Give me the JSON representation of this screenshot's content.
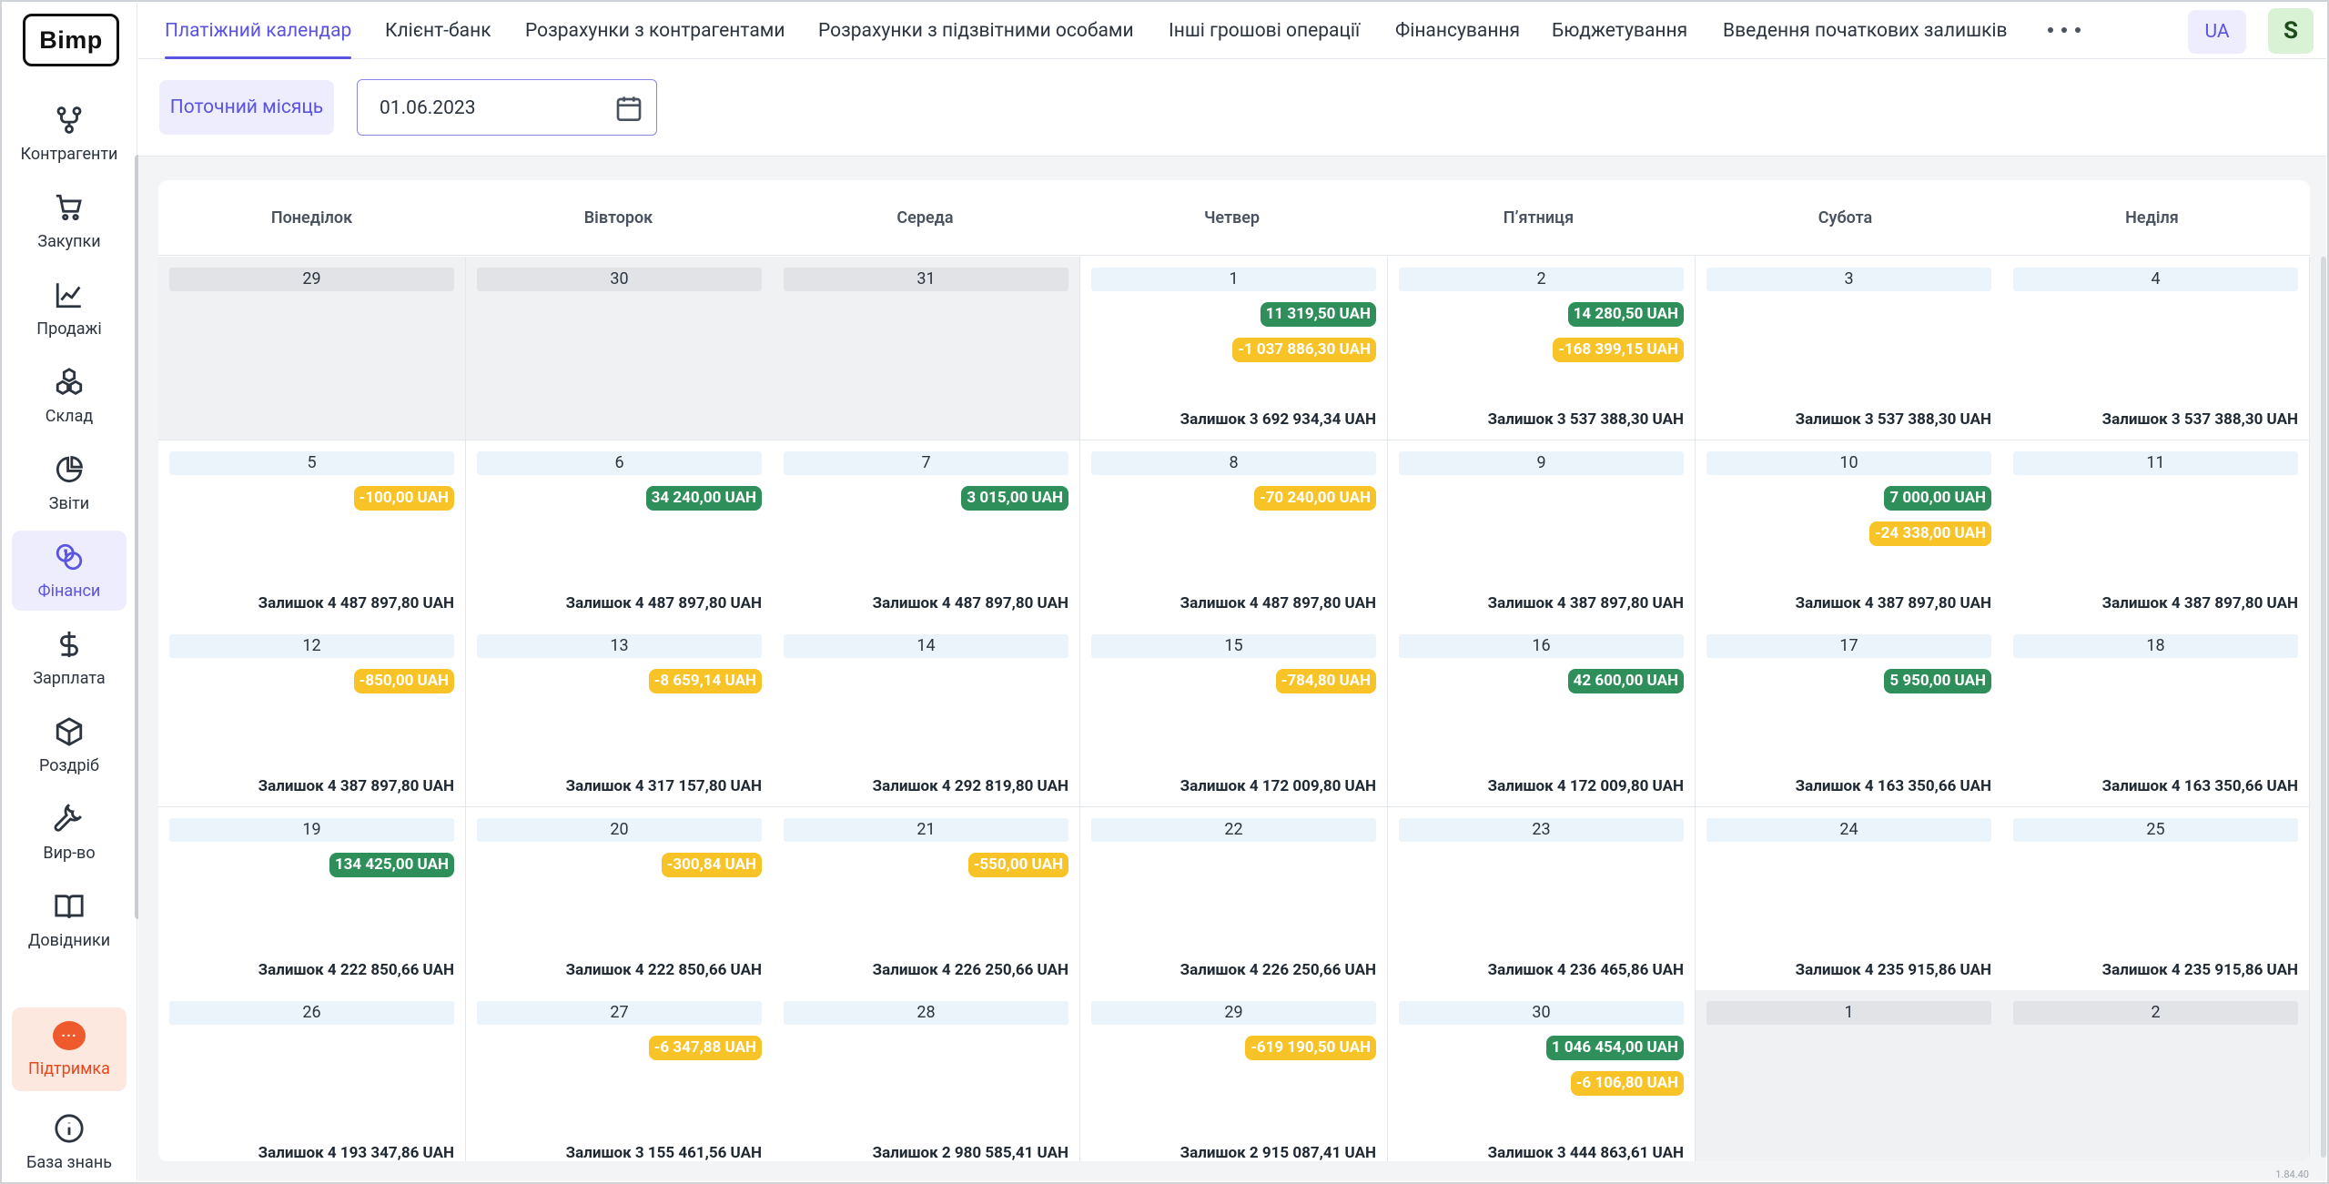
{
  "app": {
    "logo": "Bimp",
    "version": "1.84.40"
  },
  "sidebar": {
    "items": [
      {
        "label": "Контрагенти",
        "icon": "counterparties-icon"
      },
      {
        "label": "Закупки",
        "icon": "cart-icon"
      },
      {
        "label": "Продажі",
        "icon": "chart-line-icon"
      },
      {
        "label": "Склад",
        "icon": "boxes-icon"
      },
      {
        "label": "Звіти",
        "icon": "pie-chart-icon"
      },
      {
        "label": "Фінанси",
        "icon": "coins-icon",
        "active": true
      },
      {
        "label": "Зарплата",
        "icon": "dollar-icon"
      },
      {
        "label": "Роздріб",
        "icon": "box-icon"
      },
      {
        "label": "Вир-во",
        "icon": "wrench-icon"
      },
      {
        "label": "Довідники",
        "icon": "book-icon"
      }
    ],
    "support": "Підтримка",
    "knowledge_base": "База знань"
  },
  "tabs": [
    {
      "label": "Платіжний календар",
      "active": true
    },
    {
      "label": "Клієнт-банк"
    },
    {
      "label": "Розрахунки з контрагентами"
    },
    {
      "label": "Розрахунки з підзвітними особами"
    },
    {
      "label": "Інші грошові операції"
    },
    {
      "label": "Фінансування"
    },
    {
      "label": "Бюджетування"
    },
    {
      "label": "Введення початкових залишків"
    }
  ],
  "header": {
    "lang": "UA",
    "avatar": "S"
  },
  "toolbar": {
    "current_month": "Поточний місяць",
    "date": "01.06.2023"
  },
  "calendar": {
    "weekdays": [
      "Понеділок",
      "Вівторок",
      "Середа",
      "Четвер",
      "П’ятниця",
      "Субота",
      "Неділя"
    ],
    "balance_prefix": "Залишок",
    "days": [
      {
        "day": "29",
        "other": true
      },
      {
        "day": "30",
        "other": true
      },
      {
        "day": "31",
        "other": true
      },
      {
        "day": "1",
        "ops": [
          [
            "pos",
            "11 319,50 UAH"
          ],
          [
            "neg",
            "-1 037 886,30 UAH"
          ]
        ],
        "balance": "Залишок 3 692 934,34 UAH"
      },
      {
        "day": "2",
        "ops": [
          [
            "pos",
            "14 280,50 UAH"
          ],
          [
            "neg",
            "-168 399,15 UAH"
          ]
        ],
        "balance": "Залишок 3 537 388,30 UAH"
      },
      {
        "day": "3",
        "balance": "Залишок 3 537 388,30 UAH"
      },
      {
        "day": "4",
        "balance": "Залишок 3 537 388,30 UAH"
      },
      {
        "day": "5",
        "ops": [
          [
            "neg",
            "-100,00 UAH"
          ]
        ],
        "balance": "Залишок 4 487 897,80 UAH"
      },
      {
        "day": "6",
        "ops": [
          [
            "pos",
            "34 240,00 UAH"
          ]
        ],
        "balance": "Залишок 4 487 897,80 UAH"
      },
      {
        "day": "7",
        "ops": [
          [
            "pos",
            "3 015,00 UAH"
          ]
        ],
        "balance": "Залишок 4 487 897,80 UAH"
      },
      {
        "day": "8",
        "ops": [
          [
            "neg",
            "-70 240,00 UAH"
          ]
        ],
        "balance": "Залишок 4 487 897,80 UAH"
      },
      {
        "day": "9",
        "balance": "Залишок 4 387 897,80 UAH"
      },
      {
        "day": "10",
        "ops": [
          [
            "pos",
            "7 000,00 UAH"
          ],
          [
            "neg",
            "-24 338,00 UAH"
          ]
        ],
        "balance": "Залишок 4 387 897,80 UAH"
      },
      {
        "day": "11",
        "balance": "Залишок 4 387 897,80 UAH"
      },
      {
        "day": "12",
        "ops": [
          [
            "neg",
            "-850,00 UAH"
          ]
        ],
        "balance": "Залишок 4 387 897,80 UAH"
      },
      {
        "day": "13",
        "ops": [
          [
            "neg",
            "-8 659,14 UAH"
          ]
        ],
        "balance": "Залишок 4 317 157,80 UAH"
      },
      {
        "day": "14",
        "balance": "Залишок 4 292 819,80 UAH"
      },
      {
        "day": "15",
        "ops": [
          [
            "neg",
            "-784,80 UAH"
          ]
        ],
        "balance": "Залишок 4 172 009,80 UAH"
      },
      {
        "day": "16",
        "ops": [
          [
            "pos",
            "42 600,00 UAH"
          ]
        ],
        "balance": "Залишок 4 172 009,80 UAH"
      },
      {
        "day": "17",
        "ops": [
          [
            "pos",
            "5 950,00 UAH"
          ]
        ],
        "balance": "Залишок 4 163 350,66 UAH"
      },
      {
        "day": "18",
        "balance": "Залишок 4 163 350,66 UAH"
      },
      {
        "day": "19",
        "ops": [
          [
            "pos",
            "134 425,00 UAH"
          ]
        ],
        "balance": "Залишок 4 222 850,66 UAH"
      },
      {
        "day": "20",
        "ops": [
          [
            "neg",
            "-300,84 UAH"
          ]
        ],
        "balance": "Залишок 4 222 850,66 UAH"
      },
      {
        "day": "21",
        "ops": [
          [
            "neg",
            "-550,00 UAH"
          ]
        ],
        "balance": "Залишок 4 226 250,66 UAH"
      },
      {
        "day": "22",
        "balance": "Залишок 4 226 250,66 UAH"
      },
      {
        "day": "23",
        "balance": "Залишок 4 236 465,86 UAH"
      },
      {
        "day": "24",
        "balance": "Залишок 4 235 915,86 UAH"
      },
      {
        "day": "25",
        "balance": "Залишок 4 235 915,86 UAH"
      },
      {
        "day": "26",
        "balance": "Залишок 4 193 347,86 UAH"
      },
      {
        "day": "27",
        "ops": [
          [
            "neg",
            "-6 347,88 UAH"
          ]
        ],
        "balance": "Залишок 3 155 461,56 UAH"
      },
      {
        "day": "28",
        "balance": "Залишок 2 980 585,41 UAH"
      },
      {
        "day": "29",
        "ops": [
          [
            "neg",
            "-619 190,50 UAH"
          ]
        ],
        "balance": "Залишок 2 915 087,41 UAH"
      },
      {
        "day": "30",
        "ops": [
          [
            "pos",
            "1 046 454,00 UAH"
          ],
          [
            "neg",
            "-6 106,80 UAH"
          ]
        ],
        "balance": "Залишок 3 444 863,61 UAH"
      },
      {
        "day": "1",
        "other": true
      },
      {
        "day": "2",
        "other": true
      }
    ]
  },
  "colors": {
    "accent": "#5b54e0",
    "positive": "#2f8f5b",
    "negative": "#f7c326",
    "support": "#ef5a2c"
  }
}
